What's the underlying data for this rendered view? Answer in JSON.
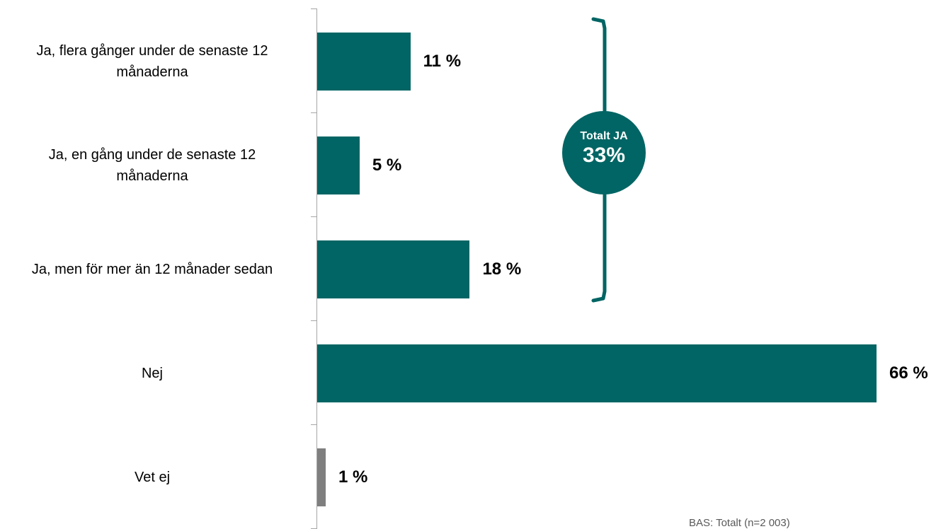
{
  "chart_data": {
    "type": "bar",
    "orientation": "horizontal",
    "categories": [
      "Ja, flera gånger under de senaste 12 månaderna",
      "Ja, en gång under de senaste 12 månaderna",
      "Ja, men för mer än 12 månader sedan",
      "Nej",
      "Vet ej"
    ],
    "values": [
      11,
      5,
      18,
      66,
      1
    ],
    "value_labels": [
      "11 %",
      "5 %",
      "18 %",
      "66 %",
      "1 %"
    ],
    "bar_colors": [
      "#006564",
      "#006564",
      "#006564",
      "#006564",
      "#7f7f7f"
    ],
    "xlim": [
      0,
      66
    ],
    "grid": false,
    "legend": "none"
  },
  "annotation": {
    "label": "Totalt JA",
    "value": "33%",
    "color": "#006564"
  },
  "footnote": "BAS: Totalt (n=2 003)"
}
